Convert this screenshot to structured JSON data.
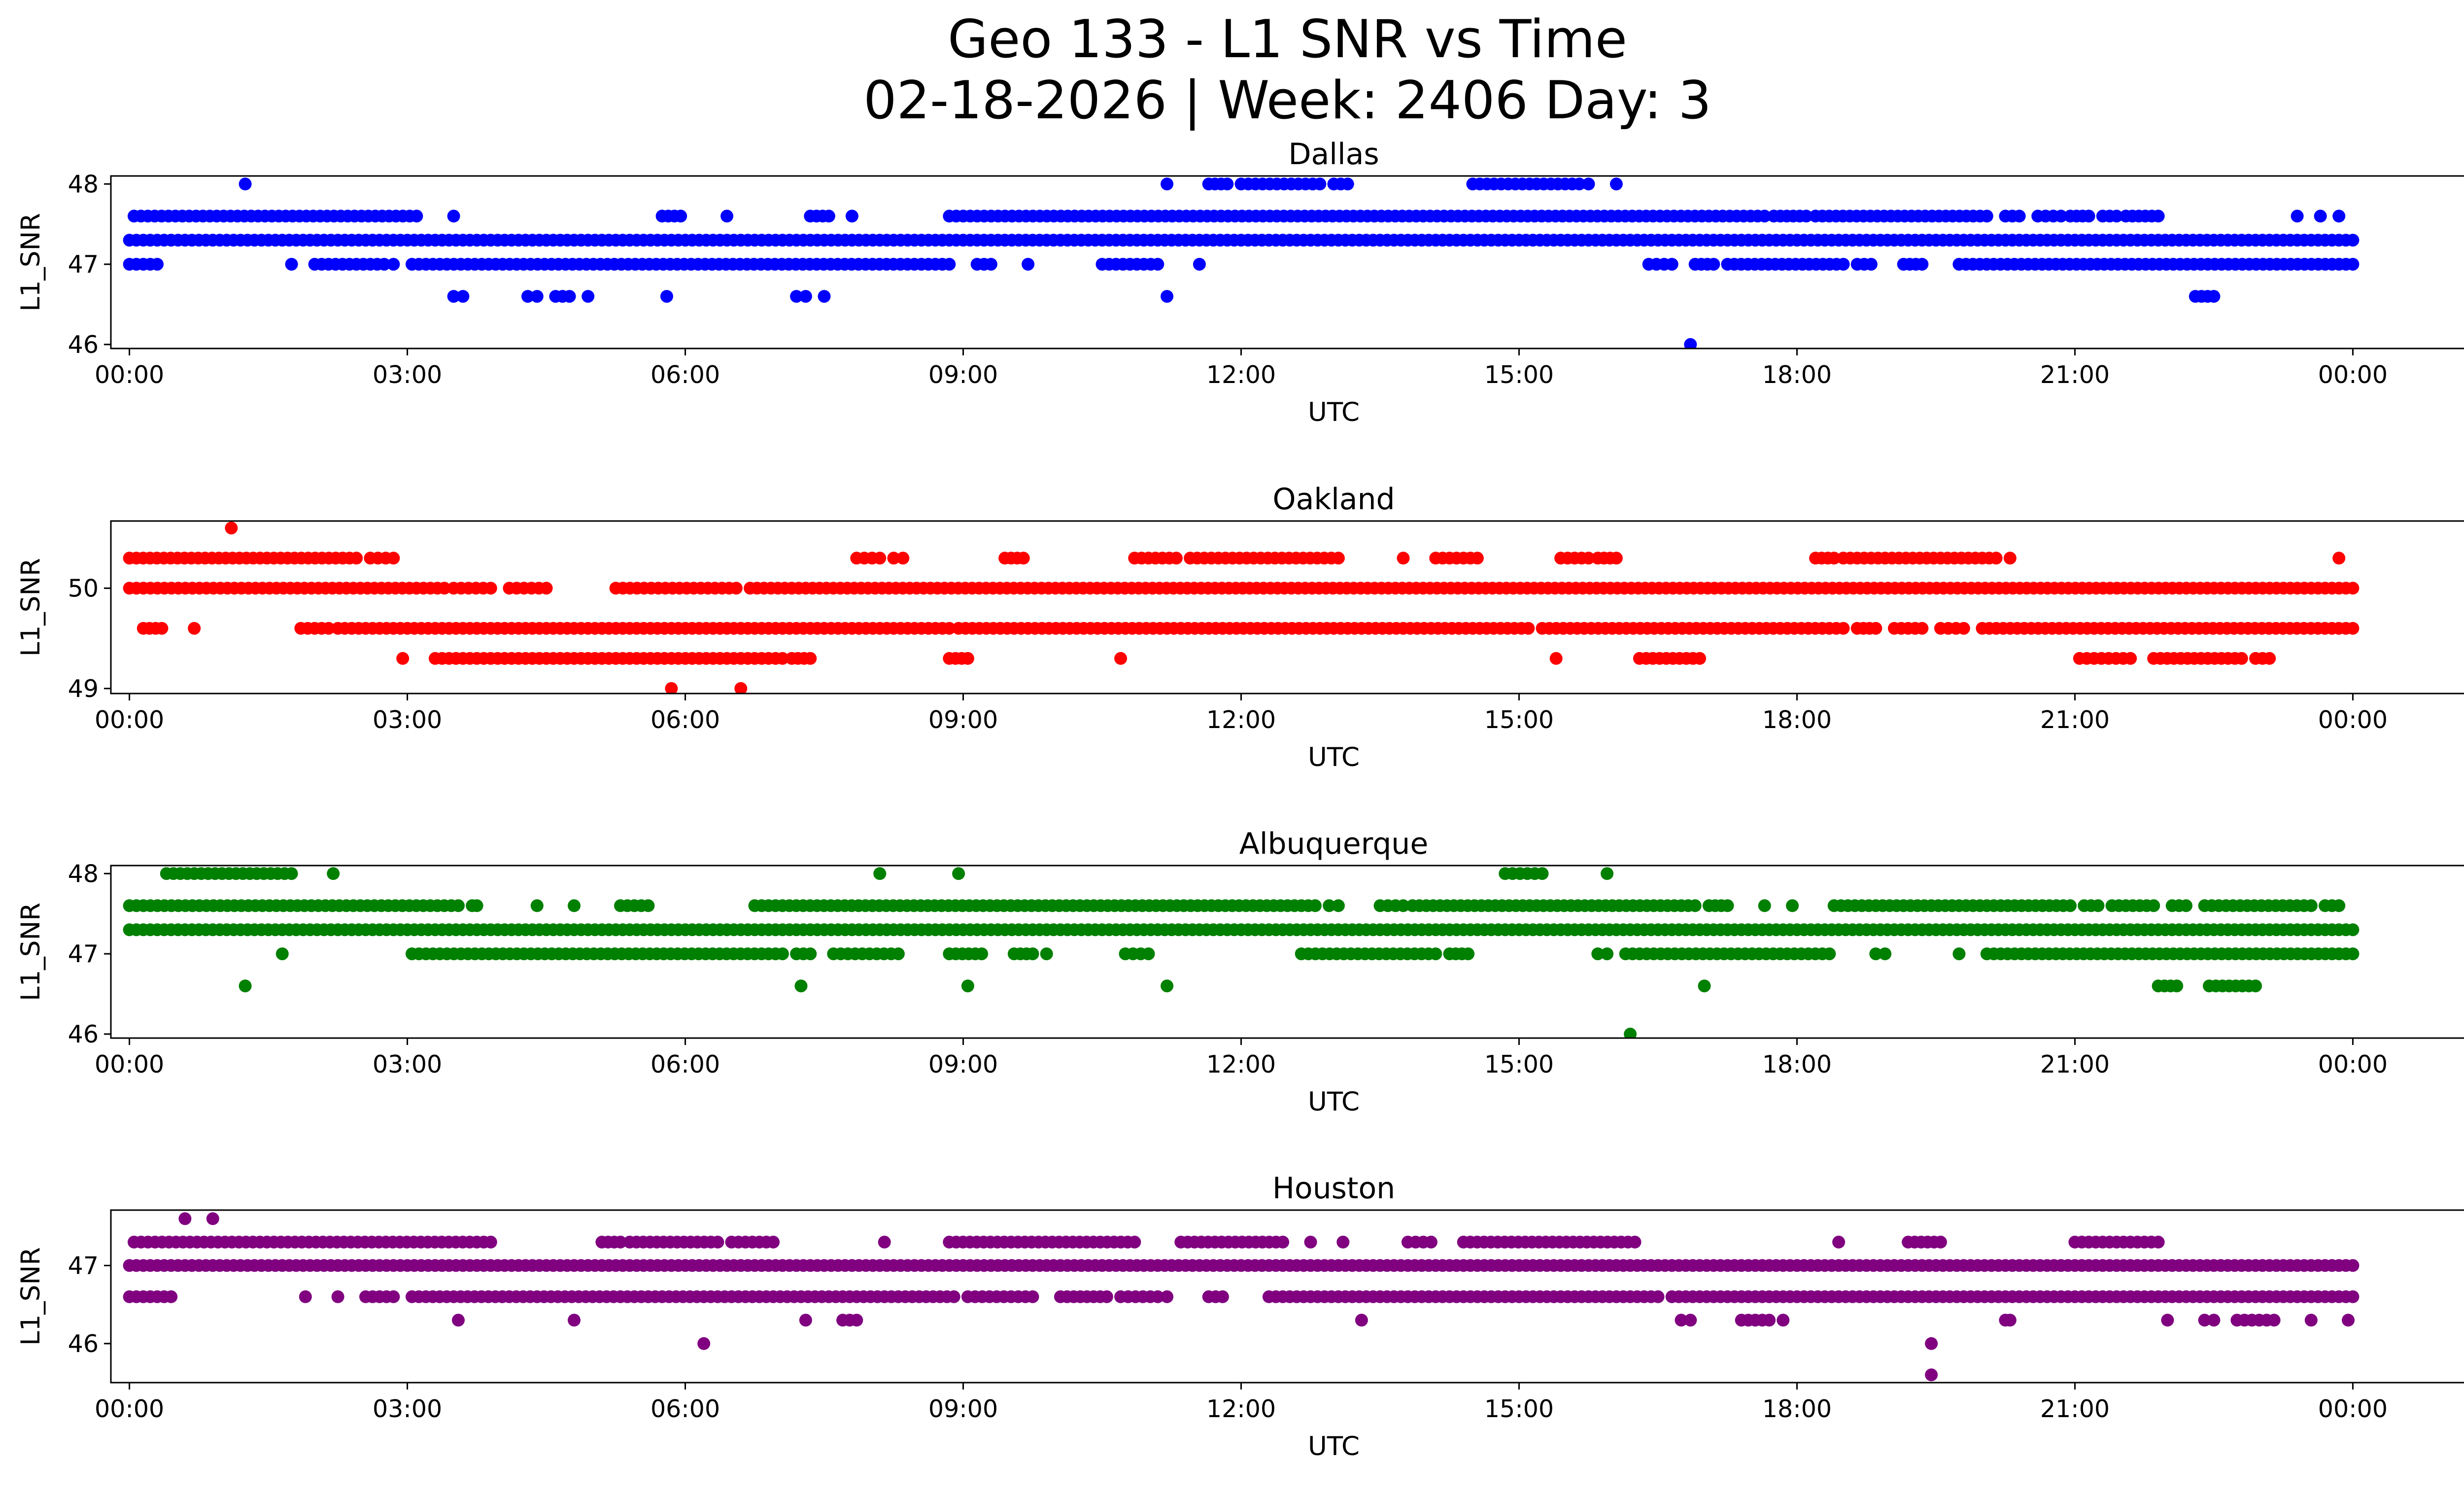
{
  "figure": {
    "title_line1": "Geo 133 - L1 SNR vs Time",
    "title_line2": "02-18-2026 | Week: 2406 Day: 3"
  },
  "chart_data": [
    {
      "type": "scatter",
      "title": "Dallas",
      "xlabel": "UTC",
      "ylabel": "L1_SNR",
      "color": "#0000ff",
      "xlim": [
        -0.2,
        26.2
      ],
      "ylim": [
        45.95,
        48.1
      ],
      "x_ticks": [
        0,
        3,
        6,
        9,
        12,
        15,
        18,
        21,
        24
      ],
      "x_tick_labels": [
        "00:00",
        "03:00",
        "06:00",
        "09:00",
        "12:00",
        "15:00",
        "18:00",
        "21:00",
        "00:00"
      ],
      "y_ticks": [
        46,
        47,
        48
      ],
      "bands": [
        {
          "y": 47.3,
          "ranges": [
            [
              0,
              24
            ]
          ]
        },
        {
          "y": 47.6,
          "ranges": [
            [
              0.05,
              3.1
            ],
            [
              3.5,
              3.5
            ],
            [
              5.75,
              5.95
            ],
            [
              6.45,
              6.45
            ],
            [
              7.35,
              7.55
            ],
            [
              7.8,
              7.8
            ],
            [
              8.85,
              17.65
            ],
            [
              17.75,
              18.1
            ],
            [
              18.2,
              20.05
            ],
            [
              20.25,
              20.4
            ],
            [
              20.6,
              20.85
            ],
            [
              20.95,
              21.15
            ],
            [
              21.3,
              21.45
            ],
            [
              21.55,
              21.9
            ],
            [
              23.4,
              23.4
            ],
            [
              23.65,
              23.65
            ],
            [
              23.85,
              23.85
            ]
          ]
        },
        {
          "y": 47.0,
          "ranges": [
            [
              0,
              0.3
            ],
            [
              1.75,
              1.75
            ],
            [
              2.0,
              2.75
            ],
            [
              2.85,
              2.85
            ],
            [
              3.05,
              8.85
            ],
            [
              9.15,
              9.3
            ],
            [
              9.7,
              9.7
            ],
            [
              10.5,
              11.1
            ],
            [
              11.55,
              11.55
            ],
            [
              16.4,
              16.65
            ],
            [
              16.9,
              17.1
            ],
            [
              17.25,
              18.5
            ],
            [
              18.65,
              18.8
            ],
            [
              19.15,
              19.35
            ],
            [
              19.75,
              24.0
            ]
          ]
        },
        {
          "y": 48.0,
          "ranges": [
            [
              1.25,
              1.25
            ],
            [
              11.2,
              11.2
            ],
            [
              11.65,
              11.85
            ],
            [
              12.0,
              12.85
            ],
            [
              13.0,
              13.15
            ],
            [
              14.5,
              15.65
            ],
            [
              15.75,
              15.75
            ],
            [
              16.05,
              16.05
            ]
          ]
        },
        {
          "y": 46.6,
          "ranges": [
            [
              3.5,
              3.6
            ],
            [
              4.3,
              4.4
            ],
            [
              4.6,
              4.75
            ],
            [
              4.95,
              4.95
            ],
            [
              5.8,
              5.8
            ],
            [
              7.2,
              7.3
            ],
            [
              7.5,
              7.5
            ],
            [
              11.2,
              11.2
            ],
            [
              22.3,
              22.5
            ]
          ]
        },
        {
          "y": 46.0,
          "ranges": [
            [
              16.85,
              16.85
            ]
          ]
        }
      ]
    },
    {
      "type": "scatter",
      "title": "Oakland",
      "xlabel": "UTC",
      "ylabel": "L1_SNR",
      "color": "#ff0000",
      "xlim": [
        -0.2,
        26.2
      ],
      "ylim": [
        48.95,
        50.67
      ],
      "x_ticks": [
        0,
        3,
        6,
        9,
        12,
        15,
        18,
        21,
        24
      ],
      "x_tick_labels": [
        "00:00",
        "03:00",
        "06:00",
        "09:00",
        "12:00",
        "15:00",
        "18:00",
        "21:00",
        "00:00"
      ],
      "y_ticks": [
        49,
        50
      ],
      "bands": [
        {
          "y": 50.0,
          "ranges": [
            [
              0,
              3.4
            ],
            [
              3.5,
              3.9
            ],
            [
              4.1,
              4.5
            ],
            [
              5.25,
              6.55
            ],
            [
              6.7,
              24.0
            ]
          ]
        },
        {
          "y": 49.6,
          "ranges": [
            [
              0.15,
              0.35
            ],
            [
              0.7,
              0.7
            ],
            [
              1.85,
              2.15
            ],
            [
              2.25,
              8.85
            ],
            [
              8.95,
              15.1
            ],
            [
              15.25,
              18.5
            ],
            [
              18.65,
              18.85
            ],
            [
              19.05,
              19.35
            ],
            [
              19.55,
              19.8
            ],
            [
              20.0,
              24.0
            ]
          ]
        },
        {
          "y": 50.3,
          "ranges": [
            [
              0,
              2.45
            ],
            [
              2.6,
              2.85
            ],
            [
              7.85,
              8.1
            ],
            [
              8.25,
              8.35
            ],
            [
              9.45,
              9.65
            ],
            [
              10.85,
              11.3
            ],
            [
              11.45,
              13.05
            ],
            [
              13.75,
              13.75
            ],
            [
              14.1,
              14.55
            ],
            [
              15.45,
              15.75
            ],
            [
              15.85,
              16.05
            ],
            [
              18.2,
              18.4
            ],
            [
              18.5,
              20.15
            ],
            [
              20.3,
              20.3
            ],
            [
              23.85,
              23.85
            ]
          ]
        },
        {
          "y": 49.3,
          "ranges": [
            [
              2.95,
              2.95
            ],
            [
              3.3,
              7.05
            ],
            [
              7.15,
              7.35
            ],
            [
              8.85,
              9.05
            ],
            [
              10.7,
              10.7
            ],
            [
              15.4,
              15.4
            ],
            [
              16.3,
              16.95
            ],
            [
              21.05,
              21.6
            ],
            [
              21.85,
              22.8
            ],
            [
              22.95,
              23.1
            ]
          ]
        },
        {
          "y": 50.6,
          "ranges": [
            [
              1.1,
              1.1
            ]
          ]
        },
        {
          "y": 49.0,
          "ranges": [
            [
              5.85,
              5.85
            ],
            [
              6.6,
              6.6
            ]
          ]
        }
      ]
    },
    {
      "type": "scatter",
      "title": "Albuquerque",
      "xlabel": "UTC",
      "ylabel": "L1_SNR",
      "color": "#008000",
      "xlim": [
        -0.2,
        26.2
      ],
      "ylim": [
        45.95,
        48.1
      ],
      "x_ticks": [
        0,
        3,
        6,
        9,
        12,
        15,
        18,
        21,
        24
      ],
      "x_tick_labels": [
        "00:00",
        "03:00",
        "06:00",
        "09:00",
        "12:00",
        "15:00",
        "18:00",
        "21:00",
        "00:00"
      ],
      "y_ticks": [
        46,
        47,
        48
      ],
      "bands": [
        {
          "y": 47.3,
          "ranges": [
            [
              0,
              24
            ]
          ]
        },
        {
          "y": 47.6,
          "ranges": [
            [
              0,
              3.55
            ],
            [
              3.7,
              3.75
            ],
            [
              4.4,
              4.4
            ],
            [
              4.8,
              4.8
            ],
            [
              5.3,
              5.6
            ],
            [
              6.75,
              12.8
            ],
            [
              12.95,
              13.05
            ],
            [
              13.5,
              13.75
            ],
            [
              13.85,
              16.9
            ],
            [
              17.05,
              17.25
            ],
            [
              17.65,
              17.65
            ],
            [
              17.95,
              17.95
            ],
            [
              18.4,
              20.95
            ],
            [
              21.1,
              21.25
            ],
            [
              21.4,
              21.85
            ],
            [
              22.05,
              22.2
            ],
            [
              22.4,
              23.55
            ],
            [
              23.7,
              23.85
            ]
          ]
        },
        {
          "y": 47.0,
          "ranges": [
            [
              1.65,
              1.65
            ],
            [
              3.05,
              7.05
            ],
            [
              7.2,
              7.35
            ],
            [
              7.6,
              8.3
            ],
            [
              8.85,
              9.2
            ],
            [
              9.55,
              9.75
            ],
            [
              9.9,
              9.9
            ],
            [
              10.75,
              11.0
            ],
            [
              12.65,
              14.1
            ],
            [
              14.25,
              14.45
            ],
            [
              15.85,
              15.95
            ],
            [
              16.15,
              18.35
            ],
            [
              18.85,
              18.95
            ],
            [
              19.75,
              19.75
            ],
            [
              20.05,
              24.0
            ]
          ]
        },
        {
          "y": 48.0,
          "ranges": [
            [
              0.4,
              1.75
            ],
            [
              2.2,
              2.2
            ],
            [
              8.1,
              8.1
            ],
            [
              8.95,
              8.95
            ],
            [
              14.85,
              15.25
            ],
            [
              15.95,
              15.95
            ]
          ]
        },
        {
          "y": 46.6,
          "ranges": [
            [
              1.25,
              1.25
            ],
            [
              7.25,
              7.25
            ],
            [
              9.05,
              9.05
            ],
            [
              11.2,
              11.2
            ],
            [
              17.0,
              17.0
            ],
            [
              21.9,
              22.1
            ],
            [
              22.45,
              22.95
            ]
          ]
        },
        {
          "y": 46.0,
          "ranges": [
            [
              16.2,
              16.2
            ]
          ]
        }
      ]
    },
    {
      "type": "scatter",
      "title": "Houston",
      "xlabel": "UTC",
      "ylabel": "L1_SNR",
      "color": "#800080",
      "xlim": [
        -0.2,
        26.2
      ],
      "ylim": [
        45.5,
        47.71
      ],
      "x_ticks": [
        0,
        3,
        6,
        9,
        12,
        15,
        18,
        21,
        24
      ],
      "x_tick_labels": [
        "00:00",
        "03:00",
        "06:00",
        "09:00",
        "12:00",
        "15:00",
        "18:00",
        "21:00",
        "00:00"
      ],
      "y_ticks": [
        46,
        47
      ],
      "bands": [
        {
          "y": 47.0,
          "ranges": [
            [
              0,
              24
            ]
          ]
        },
        {
          "y": 46.6,
          "ranges": [
            [
              0,
              0.45
            ],
            [
              1.9,
              1.9
            ],
            [
              2.25,
              2.25
            ],
            [
              2.55,
              2.85
            ],
            [
              3.05,
              8.9
            ],
            [
              9.05,
              9.75
            ],
            [
              10.05,
              10.55
            ],
            [
              10.7,
              11.1
            ],
            [
              11.2,
              11.2
            ],
            [
              11.65,
              11.8
            ],
            [
              12.3,
              16.5
            ],
            [
              16.65,
              24.0
            ]
          ]
        },
        {
          "y": 47.3,
          "ranges": [
            [
              0.05,
              3.9
            ],
            [
              5.1,
              5.3
            ],
            [
              5.4,
              6.35
            ],
            [
              6.5,
              6.95
            ],
            [
              8.15,
              8.15
            ],
            [
              8.85,
              10.85
            ],
            [
              11.35,
              12.45
            ],
            [
              12.75,
              12.75
            ],
            [
              13.1,
              13.1
            ],
            [
              13.8,
              14.05
            ],
            [
              14.4,
              16.25
            ],
            [
              18.45,
              18.45
            ],
            [
              19.2,
              19.55
            ],
            [
              21.0,
              21.9
            ]
          ]
        },
        {
          "y": 47.6,
          "ranges": [
            [
              0.6,
              0.6
            ],
            [
              0.9,
              0.9
            ]
          ]
        },
        {
          "y": 46.3,
          "ranges": [
            [
              3.55,
              3.55
            ],
            [
              4.8,
              4.8
            ],
            [
              7.3,
              7.3
            ],
            [
              7.7,
              7.85
            ],
            [
              13.3,
              13.3
            ],
            [
              16.75,
              16.85
            ],
            [
              17.4,
              17.7
            ],
            [
              17.85,
              17.85
            ],
            [
              20.25,
              20.3
            ],
            [
              22.0,
              22.0
            ],
            [
              22.4,
              22.5
            ],
            [
              22.75,
              23.15
            ],
            [
              23.55,
              23.55
            ],
            [
              23.95,
              23.95
            ]
          ]
        },
        {
          "y": 46.0,
          "ranges": [
            [
              6.2,
              6.2
            ],
            [
              19.45,
              19.45
            ]
          ]
        },
        {
          "y": 45.6,
          "ranges": [
            [
              19.45,
              19.45
            ]
          ]
        }
      ]
    }
  ]
}
